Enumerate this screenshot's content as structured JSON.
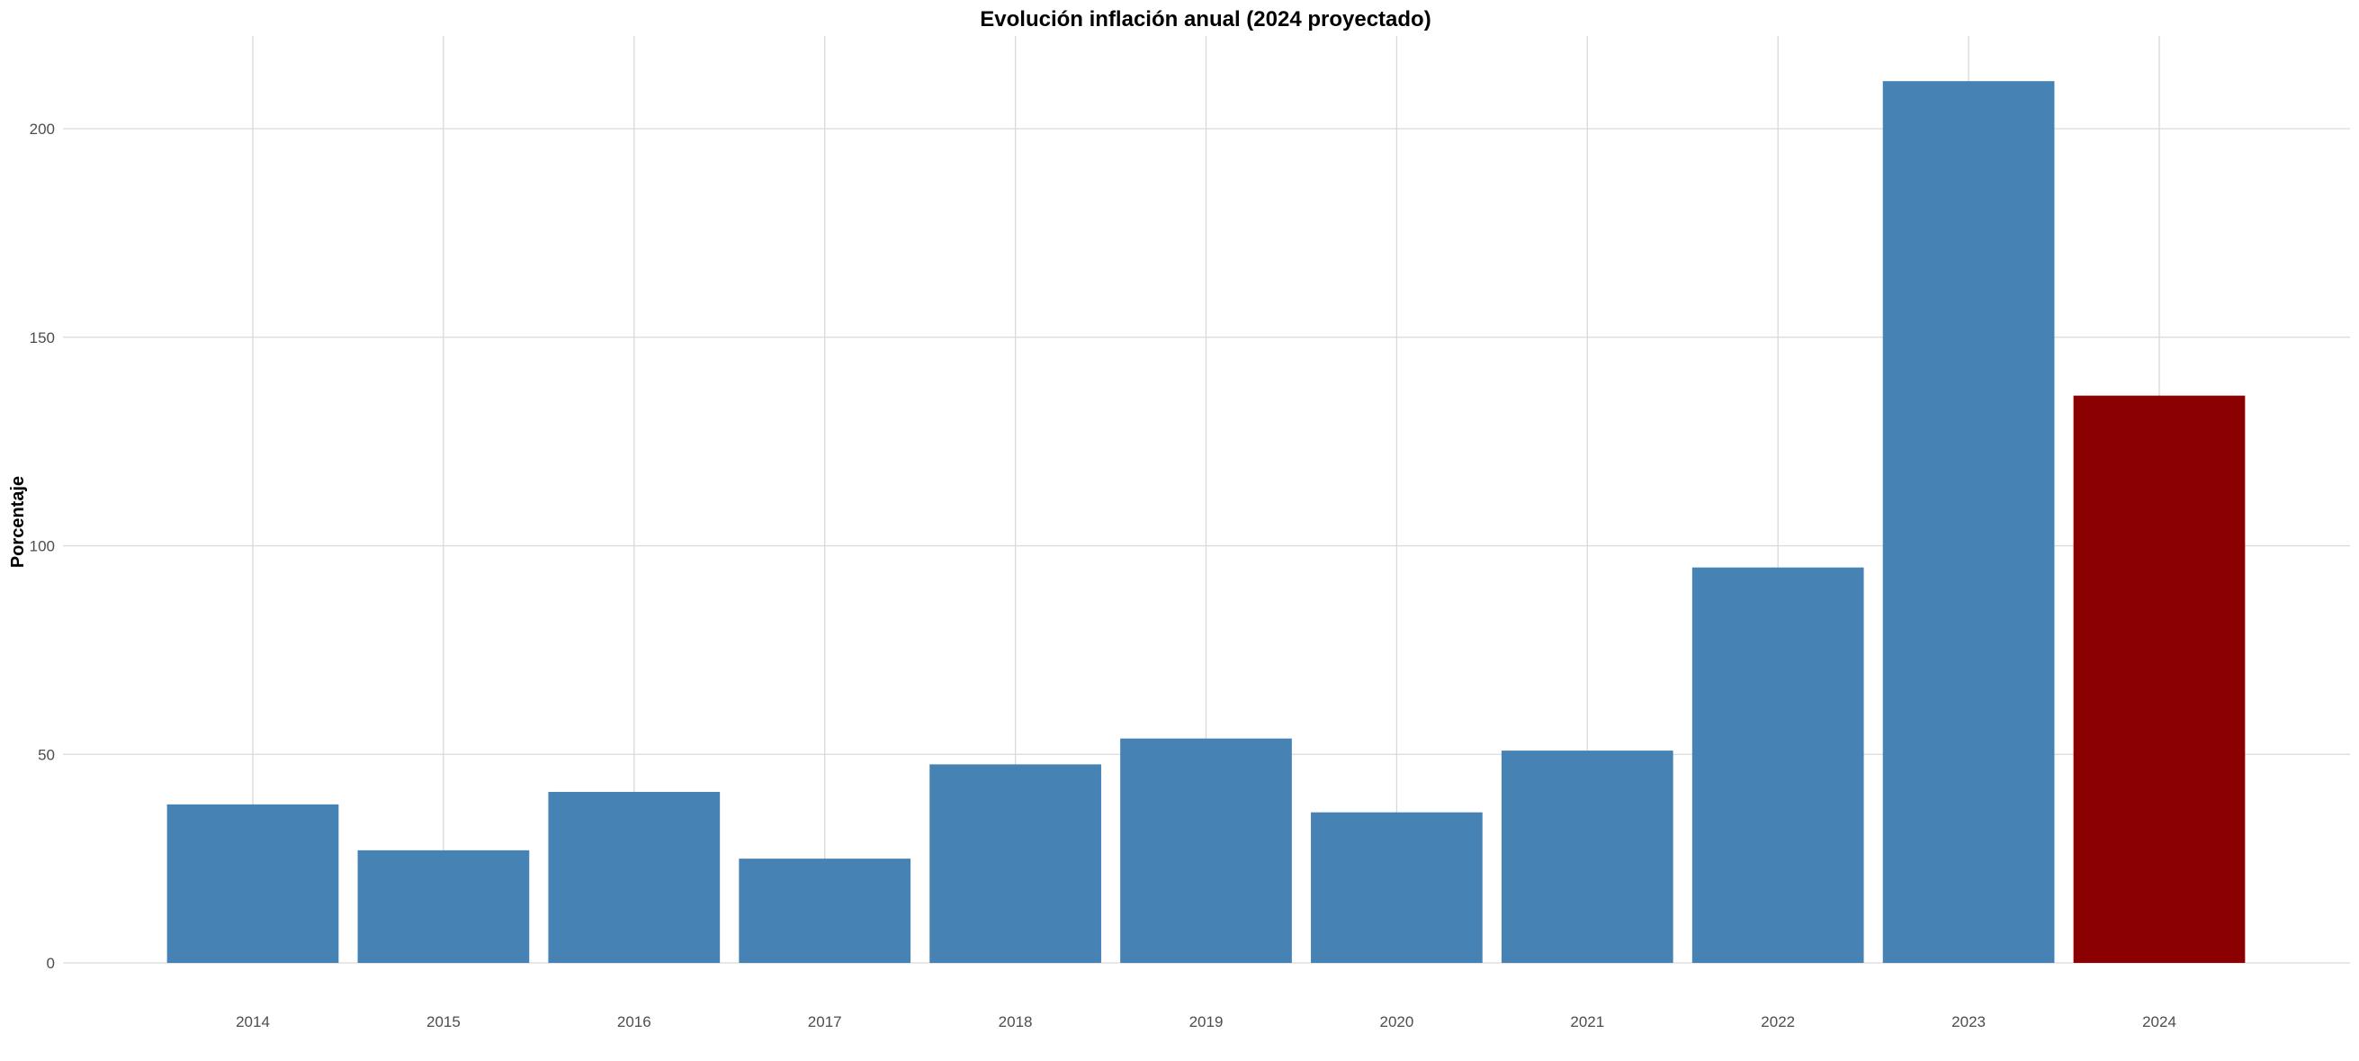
{
  "chart_data": {
    "type": "bar",
    "title": "Evolución inflación anual (2024 proyectado)",
    "xlabel": "",
    "ylabel": "Porcentaje",
    "categories": [
      "2014",
      "2015",
      "2016",
      "2017",
      "2018",
      "2019",
      "2020",
      "2021",
      "2022",
      "2023",
      "2024"
    ],
    "values": [
      38.0,
      27.0,
      41.0,
      25.0,
      47.6,
      53.8,
      36.1,
      50.9,
      94.8,
      211.4,
      136.0
    ],
    "projected": [
      false,
      false,
      false,
      false,
      false,
      false,
      false,
      false,
      false,
      false,
      true
    ],
    "colors": {
      "actual": "#4682B4",
      "projected": "#8B0000"
    },
    "ylim": [
      0,
      220
    ],
    "yticks": [
      0,
      50,
      100,
      150,
      200
    ],
    "grid": true,
    "legend": "none"
  }
}
